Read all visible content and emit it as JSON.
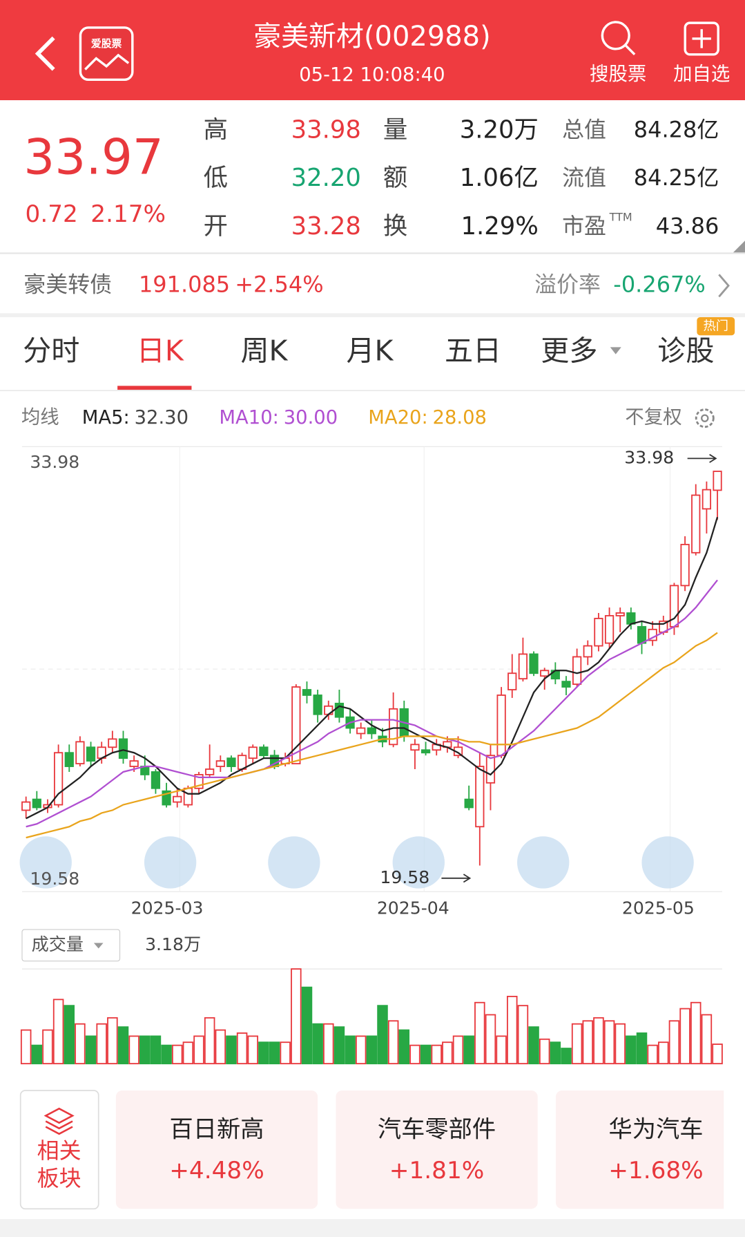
{
  "header": {
    "title": "豪美新材(002988)",
    "time": "05-12 10:08:40",
    "search": "搜股票",
    "add": "加自选",
    "logo": "爱股票"
  },
  "quote": {
    "price": "33.97",
    "change": "0.72",
    "change_pct": "2.17%",
    "stats": [
      {
        "label": "高",
        "value": "33.98"
      },
      {
        "label": "低",
        "value": "32.20"
      },
      {
        "label": "开",
        "value": "33.28"
      },
      {
        "label": "量",
        "value": "3.20万"
      },
      {
        "label": "额",
        "value": "1.06亿"
      },
      {
        "label": "换",
        "value": "1.29%"
      },
      {
        "label": "总值",
        "value": "84.28亿"
      },
      {
        "label": "流值",
        "value": "84.25亿"
      },
      {
        "label": "市盈",
        "sup": "TTM",
        "value": "43.86"
      }
    ]
  },
  "bond": {
    "name": "豪美转债",
    "price": "191.085",
    "change": "+2.54%",
    "premium_label": "溢价率",
    "premium": "-0.267%"
  },
  "tabs": {
    "items": [
      "分时",
      "日K",
      "周K",
      "月K",
      "五日",
      "更多",
      "诊股"
    ],
    "badge": "热门"
  },
  "chart_data": {
    "type": "candlestick",
    "legend_title": "均线",
    "adjust": "不复权",
    "up_color": "#e8383d",
    "down_color": "#27a844",
    "ylim": [
      19.58,
      33.98
    ],
    "open": [
      21.6,
      22.0,
      21.7,
      21.8,
      23.7,
      23.3,
      23.9,
      23.5,
      23.9,
      24.2,
      23.2,
      23.2,
      23.0,
      22.3,
      21.9,
      21.8,
      22.4,
      22.9,
      23.2,
      23.5,
      23.1,
      23.5,
      23.9,
      23.6,
      23.3,
      23.3,
      26.0,
      25.8,
      25.1,
      25.5,
      25.0,
      24.4,
      24.6,
      24.3,
      24.0,
      25.3,
      23.8,
      23.8,
      23.8,
      23.9,
      23.6,
      22.0,
      21.0,
      22.6,
      23.6,
      26.0,
      26.4,
      27.3,
      26.5,
      26.7,
      26.3,
      26.2,
      27.2,
      27.6,
      27.7,
      28.7,
      28.8,
      28.3,
      27.8,
      28.1,
      28.3,
      29.8,
      31.0,
      32.6,
      33.28
    ],
    "high": [
      22.1,
      22.3,
      22.0,
      24.0,
      24.0,
      24.3,
      24.1,
      24.1,
      24.5,
      24.5,
      23.6,
      23.6,
      23.1,
      22.6,
      22.4,
      22.5,
      23.0,
      24.0,
      23.6,
      23.6,
      23.7,
      24.0,
      24.0,
      23.8,
      23.7,
      26.2,
      26.3,
      26.0,
      25.6,
      26.0,
      25.3,
      24.8,
      24.9,
      24.6,
      25.9,
      25.6,
      24.2,
      24.1,
      24.2,
      24.3,
      24.3,
      22.5,
      23.7,
      24.0,
      26.1,
      27.3,
      27.9,
      27.4,
      26.8,
      27.0,
      26.5,
      27.5,
      27.8,
      28.8,
      29.0,
      29.0,
      29.0,
      28.5,
      28.5,
      28.7,
      29.9,
      31.6,
      33.5,
      33.6,
      33.98
    ],
    "low": [
      21.3,
      21.6,
      21.5,
      21.7,
      23.0,
      23.2,
      23.2,
      23.3,
      23.7,
      23.3,
      23.0,
      22.7,
      22.2,
      21.7,
      21.7,
      21.7,
      22.2,
      22.8,
      23.0,
      23.0,
      23.0,
      23.3,
      23.5,
      23.1,
      23.2,
      23.3,
      25.5,
      24.8,
      24.9,
      24.8,
      24.4,
      24.2,
      24.2,
      23.9,
      23.9,
      24.1,
      23.1,
      23.6,
      23.6,
      23.7,
      23.5,
      21.6,
      19.58,
      21.6,
      23.5,
      25.7,
      26.3,
      26.5,
      26.0,
      26.2,
      25.8,
      26.1,
      26.9,
      27.4,
      27.5,
      28.1,
      28.2,
      27.3,
      27.6,
      28.0,
      28.0,
      29.6,
      30.9,
      31.7,
      32.2
    ],
    "close": [
      21.9,
      21.7,
      21.8,
      23.7,
      23.2,
      24.1,
      23.4,
      23.9,
      24.2,
      23.5,
      23.4,
      22.9,
      22.4,
      21.8,
      22.1,
      22.4,
      22.9,
      23.1,
      23.4,
      23.2,
      23.6,
      23.9,
      23.6,
      23.2,
      23.5,
      26.1,
      25.8,
      25.1,
      25.4,
      25.0,
      24.6,
      24.6,
      24.4,
      24.1,
      25.3,
      24.3,
      24.0,
      23.7,
      24.0,
      24.1,
      23.9,
      21.7,
      23.2,
      23.6,
      25.8,
      26.6,
      27.3,
      26.6,
      26.7,
      26.4,
      26.1,
      27.2,
      27.6,
      28.6,
      28.7,
      28.8,
      28.4,
      27.7,
      28.2,
      28.5,
      29.8,
      31.3,
      33.1,
      33.3,
      33.97
    ],
    "series": [
      {
        "name": "MA5:",
        "color": "#222222",
        "value_label": "32.30",
        "values": [
          21.3,
          21.5,
          21.7,
          22.2,
          22.5,
          22.8,
          23.2,
          23.5,
          23.7,
          23.8,
          23.7,
          23.5,
          23.2,
          22.8,
          22.4,
          22.2,
          22.2,
          22.4,
          22.6,
          22.9,
          23.1,
          23.3,
          23.5,
          23.5,
          23.5,
          23.9,
          24.3,
          24.7,
          25.1,
          25.4,
          25.3,
          25.0,
          24.7,
          24.5,
          24.6,
          24.6,
          24.4,
          24.2,
          24.0,
          23.9,
          23.7,
          23.4,
          23.1,
          22.9,
          23.3,
          24.1,
          25.0,
          25.9,
          26.4,
          26.7,
          26.7,
          26.6,
          26.7,
          27.0,
          27.5,
          28.0,
          28.4,
          28.5,
          28.4,
          28.4,
          28.6,
          29.1,
          30.1,
          31.0,
          32.3
        ]
      },
      {
        "name": "MA10:",
        "color": "#b04fd1",
        "value_label": "30.00",
        "values": [
          21.0,
          21.1,
          21.3,
          21.5,
          21.7,
          21.9,
          22.1,
          22.4,
          22.7,
          23.0,
          23.1,
          23.2,
          23.2,
          23.1,
          23.0,
          22.9,
          22.8,
          22.8,
          22.8,
          22.8,
          22.9,
          23.0,
          23.1,
          23.3,
          23.5,
          23.7,
          23.9,
          24.1,
          24.4,
          24.6,
          24.8,
          24.9,
          24.9,
          24.9,
          24.9,
          24.8,
          24.7,
          24.5,
          24.3,
          24.2,
          24.1,
          23.9,
          23.7,
          23.5,
          23.6,
          23.9,
          24.2,
          24.5,
          24.9,
          25.3,
          25.7,
          26.1,
          26.5,
          26.8,
          27.1,
          27.3,
          27.5,
          27.7,
          27.9,
          28.1,
          28.3,
          28.6,
          29.0,
          29.5,
          30.0
        ]
      },
      {
        "name": "MA20:",
        "color": "#e9a41c",
        "value_label": "28.08",
        "values": [
          20.6,
          20.7,
          20.8,
          20.9,
          21.0,
          21.2,
          21.3,
          21.5,
          21.6,
          21.8,
          21.9,
          22.0,
          22.1,
          22.2,
          22.3,
          22.4,
          22.5,
          22.6,
          22.7,
          22.8,
          22.9,
          23.0,
          23.1,
          23.2,
          23.3,
          23.4,
          23.5,
          23.6,
          23.7,
          23.8,
          23.9,
          24.0,
          24.1,
          24.2,
          24.2,
          24.3,
          24.3,
          24.3,
          24.3,
          24.2,
          24.2,
          24.1,
          24.1,
          24.0,
          24.0,
          24.0,
          24.1,
          24.2,
          24.3,
          24.4,
          24.5,
          24.6,
          24.8,
          25.0,
          25.3,
          25.6,
          25.9,
          26.2,
          26.5,
          26.8,
          27.0,
          27.3,
          27.6,
          27.8,
          28.08
        ]
      }
    ],
    "x_labels": [
      "2025-03",
      "2025-04",
      "2025-05"
    ],
    "volume": {
      "label": "成交量",
      "value_label": "3.18万",
      "values": [
        5.5,
        3.0,
        5.5,
        10.5,
        9.5,
        6.5,
        4.5,
        6.5,
        7.5,
        6.0,
        4.5,
        4.5,
        4.5,
        3.0,
        3.0,
        3.5,
        4.5,
        7.5,
        5.5,
        4.5,
        5.0,
        4.5,
        3.5,
        3.5,
        3.5,
        15.5,
        12.5,
        6.5,
        6.5,
        6.0,
        4.5,
        4.5,
        4.5,
        9.5,
        7.0,
        5.5,
        3.0,
        3.0,
        3.0,
        3.5,
        4.5,
        4.5,
        10.0,
        8.0,
        4.5,
        11.0,
        9.5,
        6.0,
        4.0,
        3.5,
        2.5,
        6.5,
        7.0,
        7.5,
        7.0,
        6.5,
        4.5,
        5.0,
        3.0,
        3.5,
        7.0,
        9.0,
        10.0,
        8.0,
        3.18
      ]
    }
  },
  "sectors": {
    "title_1": "相关",
    "title_2": "板块",
    "cards": [
      {
        "name": "百日新高",
        "change": "+4.48%"
      },
      {
        "name": "汽车零部件",
        "change": "+1.81%"
      },
      {
        "name": "华为汽车",
        "change": "+1.68%"
      }
    ]
  }
}
